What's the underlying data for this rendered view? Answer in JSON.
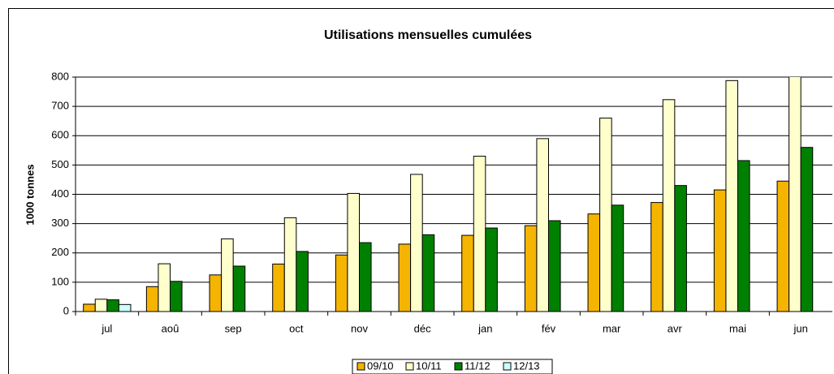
{
  "chart_data": {
    "type": "bar",
    "title": "Utilisations mensuelles cumulées",
    "y_label": "1000 tonnes",
    "categories": [
      "jul",
      "aoû",
      "sep",
      "oct",
      "nov",
      "déc",
      "jan",
      "fév",
      "mar",
      "avr",
      "mai",
      "jun"
    ],
    "series": [
      {
        "name": "09/10",
        "color": "#f5b400",
        "values": [
          25,
          85,
          125,
          162,
          193,
          230,
          260,
          293,
          333,
          372,
          415,
          445
        ]
      },
      {
        "name": "10/11",
        "color": "#ffffcc",
        "values": [
          42,
          163,
          248,
          320,
          403,
          468,
          530,
          590,
          660,
          723,
          788,
          850
        ]
      },
      {
        "name": "11/12",
        "color": "#008000",
        "values": [
          40,
          103,
          155,
          205,
          235,
          262,
          285,
          310,
          363,
          430,
          515,
          560
        ]
      },
      {
        "name": "12/13",
        "color": "#ccffff",
        "values": [
          24,
          null,
          null,
          null,
          null,
          null,
          null,
          null,
          null,
          null,
          null,
          null
        ]
      }
    ],
    "ylim": [
      0,
      800
    ],
    "yticks": [
      0,
      100,
      200,
      300,
      400,
      500,
      600,
      700,
      800
    ],
    "grid": true,
    "legend": "bottom"
  }
}
